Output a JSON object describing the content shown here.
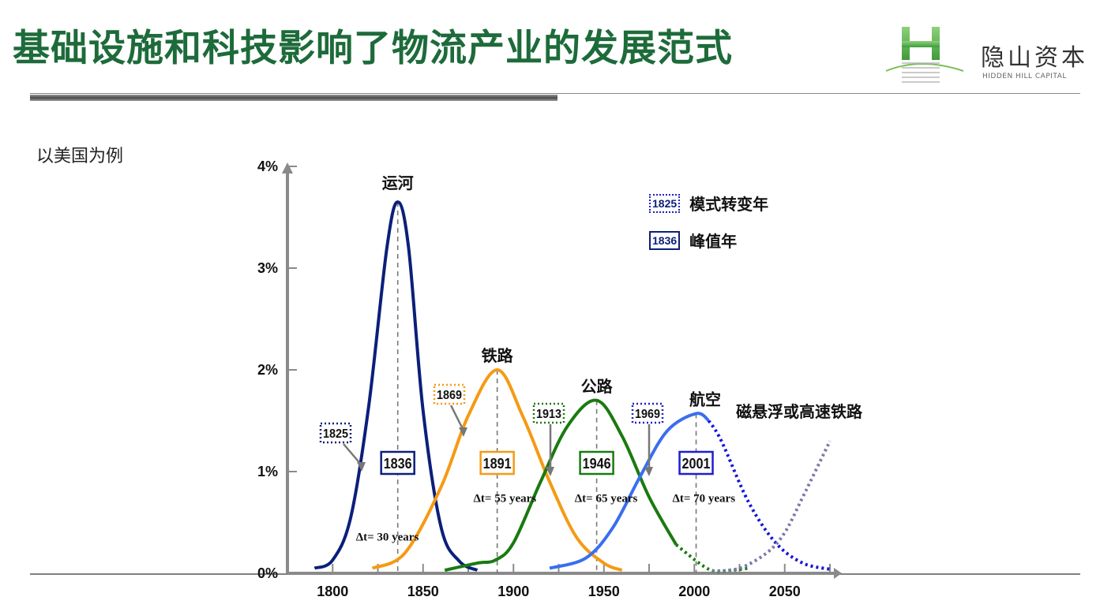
{
  "header": {
    "title": "基础设施和科技影响了物流产业的发展范式",
    "logo_cn": "隐山资本",
    "logo_en": "HIDDEN HILL CAPITAL",
    "subtitle": "以美国为例"
  },
  "colors": {
    "title": "#1d6b3a",
    "canal": "#0b1f7a",
    "railway": "#f59a14",
    "highway": "#1a7a10",
    "aviation": "#3a6ef0",
    "maglev": "#7a7aa8"
  },
  "chart_data": {
    "type": "line",
    "title": "",
    "xlabel": "",
    "ylabel": "",
    "xlim": [
      1775,
      2080
    ],
    "ylim": [
      0,
      4
    ],
    "x_ticks": [
      1800,
      1850,
      1900,
      1950,
      2000,
      2050
    ],
    "x_tick_labels": [
      "1800",
      "1850",
      "1900",
      "1950",
      "2000",
      "2050"
    ],
    "y_ticks": [
      0,
      1,
      2,
      3,
      4
    ],
    "y_tick_labels": [
      "0%",
      "1%",
      "2%",
      "3%",
      "4%"
    ],
    "series": [
      {
        "name": "运河",
        "peak_year": 1836,
        "peak_value": 3.65,
        "range": [
          1790,
          1880
        ],
        "values_note": "",
        "points": [
          [
            1790,
            0.05
          ],
          [
            1800,
            0.13
          ],
          [
            1810,
            0.55
          ],
          [
            1820,
            1.65
          ],
          [
            1830,
            3.2
          ],
          [
            1836,
            3.65
          ],
          [
            1842,
            3.2
          ],
          [
            1850,
            1.6
          ],
          [
            1860,
            0.45
          ],
          [
            1870,
            0.12
          ],
          [
            1880,
            0.03
          ]
        ]
      },
      {
        "name": "铁路",
        "peak_year": 1891,
        "peak_value": 2.0,
        "range": [
          1822,
          1960
        ],
        "points": [
          [
            1822,
            0.05
          ],
          [
            1840,
            0.2
          ],
          [
            1860,
            0.85
          ],
          [
            1875,
            1.55
          ],
          [
            1891,
            2.0
          ],
          [
            1905,
            1.55
          ],
          [
            1920,
            0.9
          ],
          [
            1935,
            0.35
          ],
          [
            1950,
            0.1
          ],
          [
            1960,
            0.03
          ]
        ]
      },
      {
        "name": "公路",
        "peak_year": 1946,
        "peak_value": 1.7,
        "range": [
          1862,
          2008
        ],
        "points": [
          [
            1862,
            0.03
          ],
          [
            1880,
            0.1
          ],
          [
            1890,
            0.13
          ],
          [
            1900,
            0.3
          ],
          [
            1915,
            0.9
          ],
          [
            1930,
            1.45
          ],
          [
            1946,
            1.7
          ],
          [
            1960,
            1.35
          ],
          [
            1975,
            0.75
          ],
          [
            1990,
            0.28
          ],
          [
            2008,
            0.04
          ]
        ]
      },
      {
        "name": "航空",
        "peak_year": 2001,
        "peak_value": 1.57,
        "range": [
          1920,
          2075
        ],
        "projected_from": 2008,
        "points": [
          [
            1920,
            0.05
          ],
          [
            1940,
            0.15
          ],
          [
            1955,
            0.45
          ],
          [
            1970,
            0.95
          ],
          [
            1985,
            1.4
          ],
          [
            2001,
            1.57
          ],
          [
            2015,
            1.3
          ],
          [
            2030,
            0.7
          ],
          [
            2045,
            0.3
          ],
          [
            2060,
            0.1
          ],
          [
            2075,
            0.04
          ]
        ]
      },
      {
        "name": "磁悬浮或高速铁路",
        "projected": true,
        "range": [
          2010,
          2075
        ],
        "points": [
          [
            2010,
            0.02
          ],
          [
            2025,
            0.05
          ],
          [
            2040,
            0.2
          ],
          [
            2050,
            0.4
          ],
          [
            2060,
            0.75
          ],
          [
            2075,
            1.3
          ]
        ]
      }
    ],
    "transition_years": [
      {
        "year": "1825",
        "color": "#0b1f7a"
      },
      {
        "year": "1869",
        "color": "#f59a14"
      },
      {
        "year": "1913",
        "color": "#1a7a10"
      },
      {
        "year": "1969",
        "color": "#3a3ad8"
      }
    ],
    "peak_years": [
      {
        "year": "1836",
        "color": "#0b1f7a"
      },
      {
        "year": "1891",
        "color": "#f59a14"
      },
      {
        "year": "1946",
        "color": "#1a7a10"
      },
      {
        "year": "2001",
        "color": "#1e1ecf"
      }
    ],
    "intervals": [
      "Δt= 30 years",
      "Δt= 55 years",
      "Δt= 65 years",
      "Δt= 70 years"
    ],
    "legend": {
      "placement": "top-right",
      "items": [
        {
          "box": "1825",
          "label": "模式转变年",
          "style": "dotted"
        },
        {
          "box": "1836",
          "label": "峰值年",
          "style": "solid"
        }
      ]
    }
  }
}
